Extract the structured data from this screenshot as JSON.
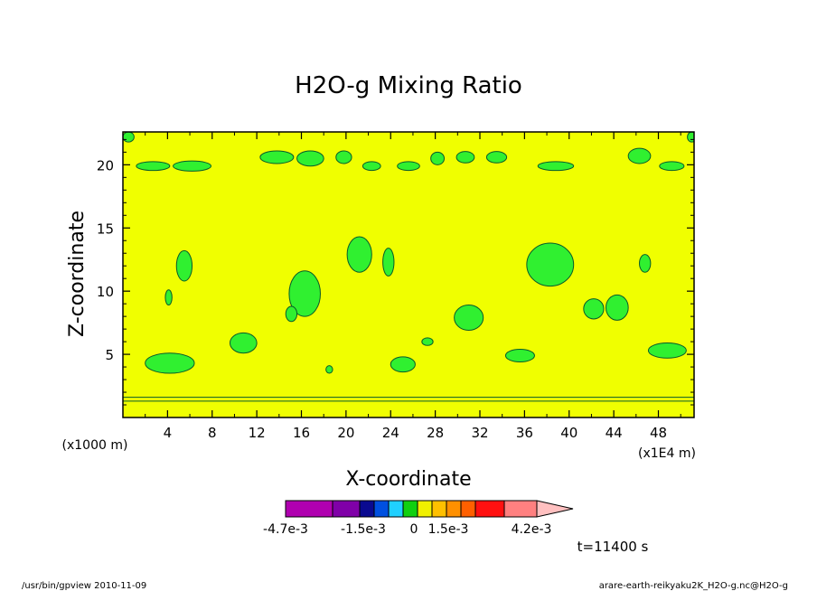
{
  "chart_data": {
    "type": "contour",
    "title": "H2O-g Mixing Ratio",
    "xlabel": "X-coordinate",
    "ylabel": "Z-coordinate",
    "x_unit_left": "(x1000 m)",
    "x_unit_right": "(x1E4 m)",
    "x_ticks": [
      "4",
      "8",
      "12",
      "16",
      "20",
      "24",
      "28",
      "32",
      "36",
      "40",
      "44",
      "48"
    ],
    "y_ticks": [
      "5",
      "10",
      "15",
      "20"
    ],
    "xlim": [
      0,
      51.2
    ],
    "ylim": [
      0,
      22.6
    ],
    "time_label": "t=11400 s",
    "colorbar": {
      "labels": [
        "-4.7e-3",
        "-1.5e-3",
        "0",
        "1.5e-3",
        "4.2e-3"
      ],
      "colors": [
        "#b000b0",
        "#8000a8",
        "#0a0a90",
        "#0050e0",
        "#20d0ff",
        "#10d010",
        "#f0f000",
        "#ffc000",
        "#ff9000",
        "#ff6000",
        "#ff1010",
        "#ff8080",
        "#ffc0c0"
      ]
    },
    "fill_color": "#f0ff00",
    "anomaly_color": "#30f030",
    "green_regions": [
      {
        "x": 4.2,
        "z": 4.3,
        "rx": 2.2,
        "rz": 0.8
      },
      {
        "x": 5.5,
        "z": 12.0,
        "rx": 0.7,
        "rz": 1.2
      },
      {
        "x": 4.1,
        "z": 9.5,
        "rx": 0.3,
        "rz": 0.6
      },
      {
        "x": 10.8,
        "z": 5.9,
        "rx": 1.2,
        "rz": 0.8
      },
      {
        "x": 16.3,
        "z": 9.8,
        "rx": 1.4,
        "rz": 1.8
      },
      {
        "x": 15.1,
        "z": 8.2,
        "rx": 0.5,
        "rz": 0.6
      },
      {
        "x": 21.2,
        "z": 12.9,
        "rx": 1.1,
        "rz": 1.4
      },
      {
        "x": 23.8,
        "z": 12.3,
        "rx": 0.5,
        "rz": 1.1
      },
      {
        "x": 25.1,
        "z": 4.2,
        "rx": 1.1,
        "rz": 0.6
      },
      {
        "x": 31.0,
        "z": 7.9,
        "rx": 1.3,
        "rz": 1.0
      },
      {
        "x": 38.3,
        "z": 12.1,
        "rx": 2.1,
        "rz": 1.7
      },
      {
        "x": 35.6,
        "z": 4.9,
        "rx": 1.3,
        "rz": 0.5
      },
      {
        "x": 42.2,
        "z": 8.6,
        "rx": 0.9,
        "rz": 0.8
      },
      {
        "x": 44.3,
        "z": 8.7,
        "rx": 1.0,
        "rz": 1.0
      },
      {
        "x": 48.8,
        "z": 5.3,
        "rx": 1.7,
        "rz": 0.6
      },
      {
        "x": 46.8,
        "z": 12.2,
        "rx": 0.5,
        "rz": 0.7
      },
      {
        "x": 27.3,
        "z": 6.0,
        "rx": 0.5,
        "rz": 0.3
      },
      {
        "x": 18.5,
        "z": 3.8,
        "rx": 0.3,
        "rz": 0.3
      },
      {
        "x": 6.2,
        "z": 19.9,
        "rx": 1.7,
        "rz": 0.4
      },
      {
        "x": 2.7,
        "z": 19.9,
        "rx": 1.5,
        "rz": 0.35
      },
      {
        "x": 13.8,
        "z": 20.6,
        "rx": 1.5,
        "rz": 0.5
      },
      {
        "x": 16.8,
        "z": 20.5,
        "rx": 1.2,
        "rz": 0.6
      },
      {
        "x": 19.8,
        "z": 20.6,
        "rx": 0.7,
        "rz": 0.5
      },
      {
        "x": 22.3,
        "z": 19.9,
        "rx": 0.8,
        "rz": 0.35
      },
      {
        "x": 25.6,
        "z": 19.9,
        "rx": 1.0,
        "rz": 0.35
      },
      {
        "x": 28.2,
        "z": 20.5,
        "rx": 0.6,
        "rz": 0.5
      },
      {
        "x": 30.7,
        "z": 20.6,
        "rx": 0.8,
        "rz": 0.45
      },
      {
        "x": 33.5,
        "z": 20.6,
        "rx": 0.9,
        "rz": 0.45
      },
      {
        "x": 38.8,
        "z": 19.9,
        "rx": 1.6,
        "rz": 0.35
      },
      {
        "x": 46.3,
        "z": 20.7,
        "rx": 1.0,
        "rz": 0.6
      },
      {
        "x": 49.2,
        "z": 19.9,
        "rx": 1.1,
        "rz": 0.35
      },
      {
        "x": 0.5,
        "z": 22.2,
        "rx": 0.5,
        "rz": 0.4
      },
      {
        "x": 51.0,
        "z": 22.2,
        "rx": 0.4,
        "rz": 0.4
      }
    ]
  },
  "footer": {
    "left": "/usr/bin/gpview  2010-11-09",
    "right": "arare-earth-reikyaku2K_H2O-g.nc@H2O-g"
  }
}
